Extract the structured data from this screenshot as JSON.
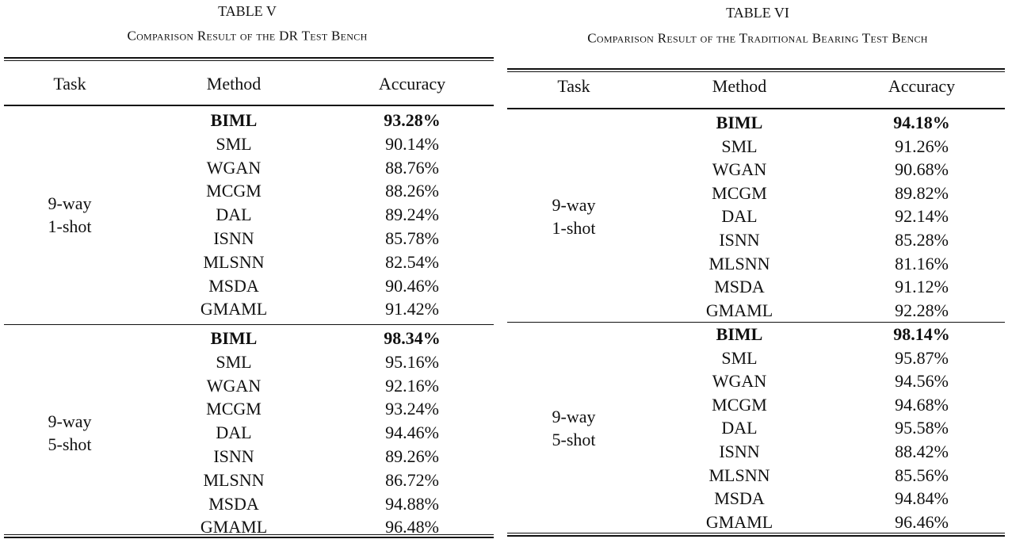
{
  "tables": [
    {
      "label": "TABLE V",
      "caption": "Comparison Result of the DR Test Bench",
      "header": [
        "Task",
        "Method",
        "Accuracy"
      ],
      "groups": [
        {
          "task": [
            "9-way",
            "1-shot"
          ],
          "rows": [
            [
              "BIML",
              "93.28%"
            ],
            [
              "SML",
              "90.14%"
            ],
            [
              "WGAN",
              "88.76%"
            ],
            [
              "MCGM",
              "88.26%"
            ],
            [
              "DAL",
              "89.24%"
            ],
            [
              "ISNN",
              "85.78%"
            ],
            [
              "MLSNN",
              "82.54%"
            ],
            [
              "MSDA",
              "90.46%"
            ],
            [
              "GMAML",
              "91.42%"
            ]
          ]
        },
        {
          "task": [
            "9-way",
            "5-shot"
          ],
          "rows": [
            [
              "BIML",
              "98.34%"
            ],
            [
              "SML",
              "95.16%"
            ],
            [
              "WGAN",
              "92.16%"
            ],
            [
              "MCGM",
              "93.24%"
            ],
            [
              "DAL",
              "94.46%"
            ],
            [
              "ISNN",
              "89.26%"
            ],
            [
              "MLSNN",
              "86.72%"
            ],
            [
              "MSDA",
              "94.88%"
            ],
            [
              "GMAML",
              "96.48%"
            ]
          ]
        }
      ]
    },
    {
      "label": "TABLE VI",
      "caption": "Comparison Result of the Traditional Bearing Test Bench",
      "header": [
        "Task",
        "Method",
        "Accuracy"
      ],
      "groups": [
        {
          "task": [
            "9-way",
            "1-shot"
          ],
          "rows": [
            [
              "BIML",
              "94.18%"
            ],
            [
              "SML",
              "91.26%"
            ],
            [
              "WGAN",
              "90.68%"
            ],
            [
              "MCGM",
              "89.82%"
            ],
            [
              "DAL",
              "92.14%"
            ],
            [
              "ISNN",
              "85.28%"
            ],
            [
              "MLSNN",
              "81.16%"
            ],
            [
              "MSDA",
              "91.12%"
            ],
            [
              "GMAML",
              "92.28%"
            ]
          ]
        },
        {
          "task": [
            "9-way",
            "5-shot"
          ],
          "rows": [
            [
              "BIML",
              "98.14%"
            ],
            [
              "SML",
              "95.87%"
            ],
            [
              "WGAN",
              "94.56%"
            ],
            [
              "MCGM",
              "94.68%"
            ],
            [
              "DAL",
              "95.58%"
            ],
            [
              "ISNN",
              "88.42%"
            ],
            [
              "MLSNN",
              "85.56%"
            ],
            [
              "MSDA",
              "94.84%"
            ],
            [
              "GMAML",
              "96.46%"
            ]
          ]
        }
      ]
    }
  ]
}
